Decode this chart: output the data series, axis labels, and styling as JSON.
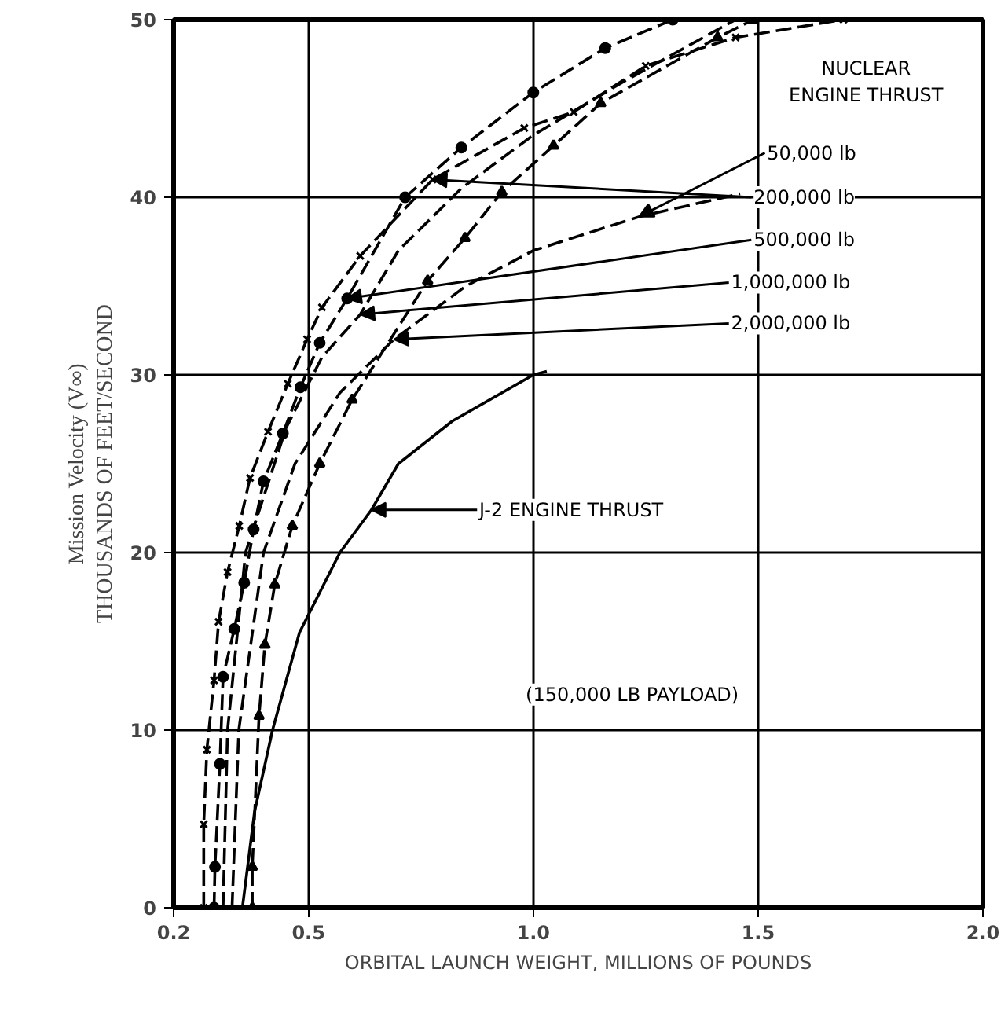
{
  "chart_data": {
    "type": "line",
    "xlabel": "ORBITAL LAUNCH WEIGHT, MILLIONS OF POUNDS",
    "ylabel": "Mission Velocity (V∞)\nTHOUSANDS OF FEET/SECOND",
    "xlim": [
      0.2,
      2.0
    ],
    "ylim": [
      0,
      50
    ],
    "xticks": [
      0.2,
      0.5,
      {
        "value": 1,
        "label": "1.0"
      },
      1.5,
      {
        "value": 2,
        "label": "2.0"
      }
    ],
    "yticks": [
      0,
      10,
      20,
      30,
      40,
      50
    ],
    "grid": true,
    "series": [
      {
        "color": "#000000",
        "marker": "cross",
        "line_style": "dashed",
        "x": [
          0.267,
          0.267,
          0.274,
          0.29,
          0.3,
          0.32,
          0.346,
          0.37,
          0.41,
          0.454,
          0.497,
          0.53,
          0.615,
          0.776,
          0.98,
          1.09,
          1.25,
          1.45,
          1.69
        ],
        "values": [
          0,
          4.7,
          8.9,
          12.8,
          16.1,
          18.9,
          21.5,
          24.2,
          26.8,
          29.5,
          32,
          33.8,
          36.7,
          41,
          43.9,
          44.8,
          47.4,
          49,
          50
        ]
      },
      {
        "color": "#000000",
        "marker": "circle",
        "line_style": "dashed",
        "x": [
          0.29,
          0.292,
          0.303,
          0.31,
          0.335,
          0.357,
          0.378,
          0.4,
          0.443,
          0.482,
          0.525,
          0.586,
          0.715,
          0.84,
          1.0,
          1.16,
          1.31
        ],
        "values": [
          0,
          2.3,
          8.1,
          13,
          15.7,
          18.3,
          21.3,
          24,
          26.7,
          29.3,
          31.8,
          34.3,
          40,
          42.8,
          45.9,
          48.4,
          50
        ]
      },
      {
        "color": "#000000",
        "marker": "none",
        "line_style": "dashed",
        "x": [
          0.31,
          0.32,
          0.36,
          0.45,
          0.53,
          0.615,
          0.7,
          0.84,
          1.0,
          1.2,
          1.45
        ],
        "values": [
          0,
          10,
          20,
          27,
          31,
          33.4,
          37,
          40.5,
          43.5,
          46.5,
          50
        ]
      },
      {
        "color": "#000000",
        "marker": "triangle",
        "line_style": "dashed",
        "x": [
          0.375,
          0.375,
          0.39,
          0.403,
          0.425,
          0.464,
          0.525,
          0.597,
          0.765,
          0.848,
          0.93,
          1.045,
          1.15,
          1.41,
          1.49
        ],
        "values": [
          0,
          2.3,
          10.8,
          14.8,
          18.2,
          21.5,
          25,
          28.6,
          35.3,
          37.7,
          40.3,
          42.9,
          45.3,
          49,
          50
        ]
      },
      {
        "color": "#000000",
        "marker": "none",
        "line_style": "dashed",
        "x": [
          0.33,
          0.345,
          0.4,
          0.47,
          0.57,
          0.69,
          0.85,
          1.0,
          1.235,
          1.46
        ],
        "values": [
          0,
          10,
          20,
          25,
          29,
          32,
          35,
          37,
          38.9,
          40.2
        ]
      },
      {
        "color": "#000000",
        "marker": "none",
        "line_style": "solid",
        "x": [
          0.353,
          0.38,
          0.42,
          0.48,
          0.57,
          0.64,
          0.7,
          0.82,
          1.0,
          1.03
        ],
        "values": [
          0,
          5.4,
          10,
          15.5,
          20,
          22.4,
          25,
          27.4,
          30,
          30.2
        ]
      }
    ],
    "annotations": [
      "NUCLEAR\nENGINE THRUST",
      {
        "text": "50,000 lb",
        "x": 1.235,
        "y": 38.9
      },
      {
        "text": "200,000 lb",
        "x": 0.776,
        "y": 41
      },
      {
        "text": "500,000 lb",
        "x": 0.586,
        "y": 34.3
      },
      {
        "text": "1,000,000 lb",
        "x": 0.615,
        "y": 33.4
      },
      {
        "text": "2,000,000 lb",
        "x": 0.69,
        "y": 32
      },
      {
        "text": "J-2 ENGINE THRUST",
        "x": 0.64,
        "y": 22.4
      },
      "(150,000 LB PAYLOAD)"
    ]
  }
}
